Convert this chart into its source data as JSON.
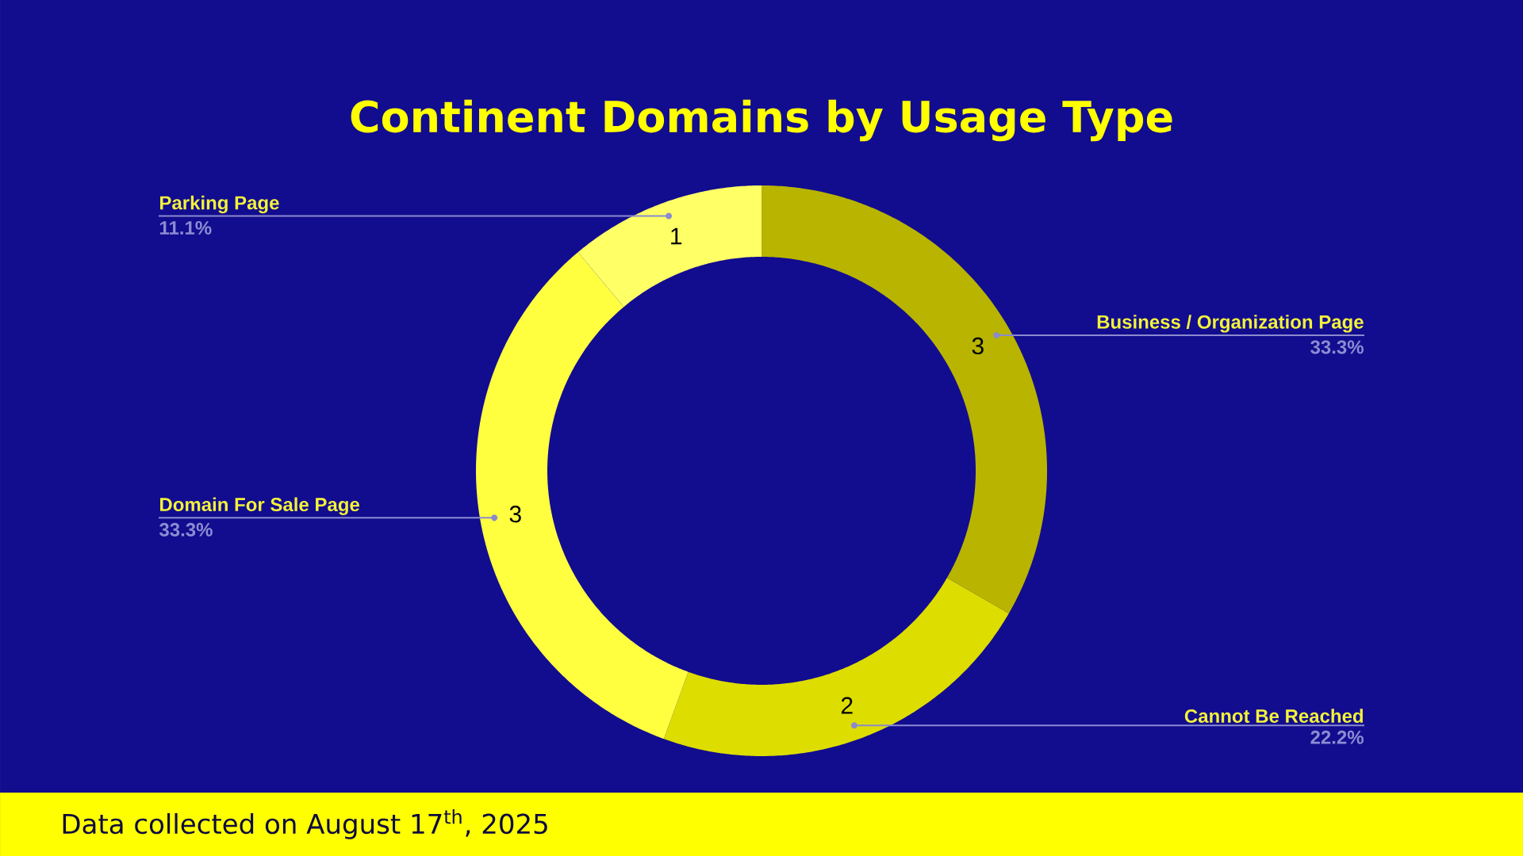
{
  "chart_data": {
    "type": "donut",
    "title": "Continent Domains by Usage Type",
    "categories": [
      "Business / Organization Page",
      "Cannot Be Reached",
      "Domain For Sale Page",
      "Parking Page"
    ],
    "values": [
      3,
      2,
      3,
      1
    ],
    "colors": [
      "#b8b400",
      "#dddd00",
      "#ffff40",
      "#ffff66"
    ],
    "data_labels": true,
    "annotations": [
      {
        "text": "33.3%",
        "x": "Business / Organization Page"
      },
      {
        "text": "22.2%",
        "x": "Cannot Be Reached"
      },
      {
        "text": "33.3%",
        "x": "Domain For Sale Page"
      },
      {
        "text": "11.1%",
        "x": "Parking Page"
      },
      "Data collected on August 17$^{th}$, 2025"
    ]
  }
}
